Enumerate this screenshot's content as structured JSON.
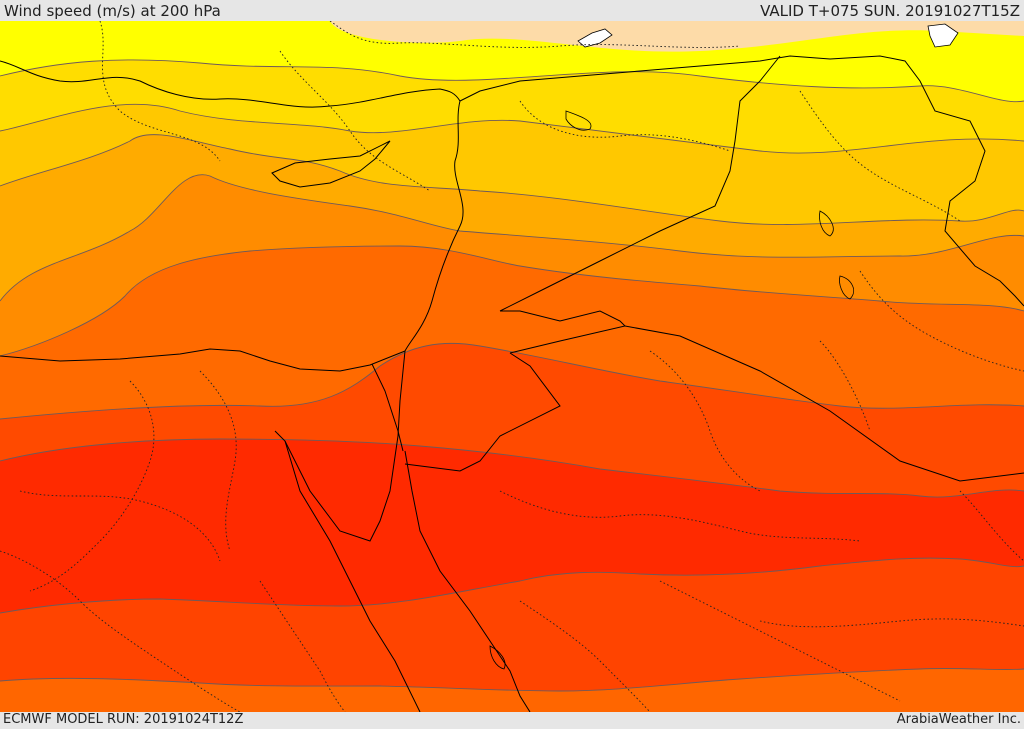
{
  "header": {
    "title": "Wind speed (m/s) at 200 hPa",
    "valid_time": "VALID T+075 SUN. 20191027T15Z"
  },
  "footer": {
    "model_run": "ECMWF MODEL RUN: 20191024T12Z",
    "credit": "ArabiaWeather Inc."
  },
  "map": {
    "field": "wind-speed-200hPa",
    "colors": {
      "band_0": "#fddba8",
      "band_1": "#ffff00",
      "band_2": "#ffdd00",
      "band_3": "#ffc800",
      "band_4": "#ffab00",
      "band_5": "#ff8c00",
      "band_6": "#ff6a00",
      "band_7": "#ff4a00",
      "band_8": "#ff2a00",
      "band_9": "#ff4400",
      "band_10": "#ff6600",
      "lakes": "#ffffff",
      "borders": "#000000"
    }
  }
}
